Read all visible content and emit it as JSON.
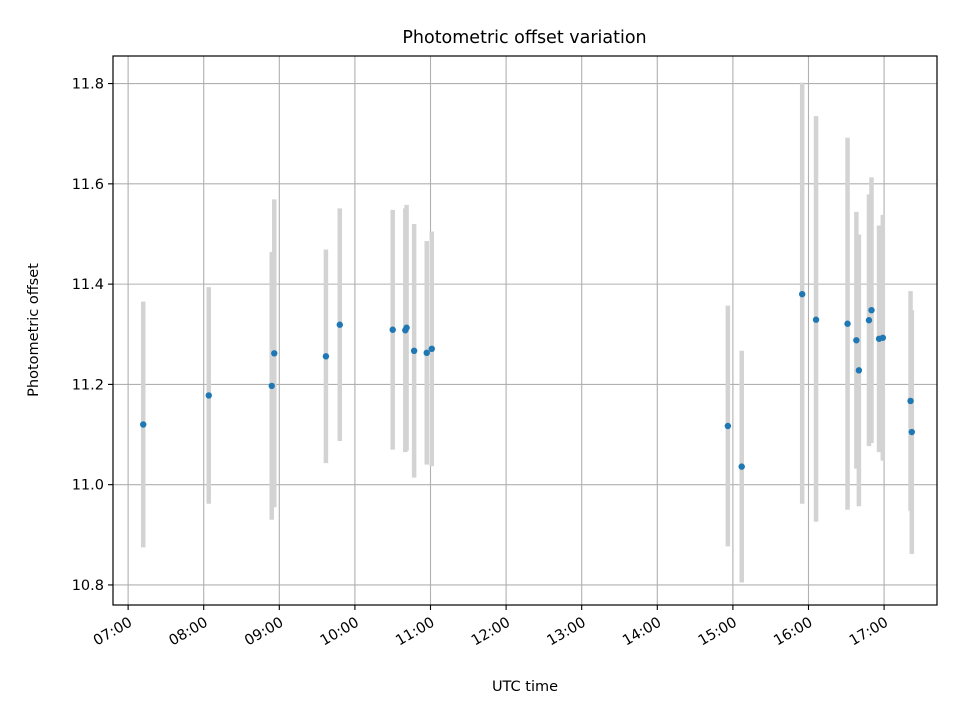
{
  "chart_data": {
    "type": "scatter",
    "title": "Photometric offset variation",
    "xlabel": "UTC time",
    "ylabel": "Photometric offset",
    "grid": true,
    "xlim": [
      "06:48",
      "17:42"
    ],
    "ylim": [
      10.76,
      11.855
    ],
    "x_ticks": [
      "07:00",
      "08:00",
      "09:00",
      "10:00",
      "11:00",
      "12:00",
      "13:00",
      "14:00",
      "15:00",
      "16:00",
      "17:00"
    ],
    "y_ticks": [
      "10.8",
      "11.0",
      "11.2",
      "11.4",
      "11.6",
      "11.8"
    ],
    "colors": {
      "points": "#1f77b4",
      "errorbars": "#d3d3d3",
      "grid": "#b0b0b0"
    },
    "series": [
      {
        "points": [
          {
            "x": "07:12",
            "y": 11.12,
            "low": 10.875,
            "high": 11.365
          },
          {
            "x": "08:04",
            "y": 11.178,
            "low": 10.962,
            "high": 11.394
          },
          {
            "x": "08:54",
            "y": 11.197,
            "low": 10.93,
            "high": 11.464
          },
          {
            "x": "08:56",
            "y": 11.262,
            "low": 10.955,
            "high": 11.569
          },
          {
            "x": "09:37",
            "y": 11.256,
            "low": 11.043,
            "high": 11.469
          },
          {
            "x": "09:48",
            "y": 11.319,
            "low": 11.087,
            "high": 11.551
          },
          {
            "x": "10:30",
            "y": 11.309,
            "low": 11.07,
            "high": 11.548
          },
          {
            "x": "10:40",
            "y": 11.308,
            "low": 11.065,
            "high": 11.551
          },
          {
            "x": "10:41",
            "y": 11.313,
            "low": 11.068,
            "high": 11.558
          },
          {
            "x": "10:47",
            "y": 11.267,
            "low": 11.014,
            "high": 11.52
          },
          {
            "x": "10:57",
            "y": 11.263,
            "low": 11.04,
            "high": 11.486
          },
          {
            "x": "11:01",
            "y": 11.271,
            "low": 11.037,
            "high": 11.505
          },
          {
            "x": "14:56",
            "y": 11.117,
            "low": 10.877,
            "high": 11.357
          },
          {
            "x": "15:07",
            "y": 11.036,
            "low": 10.805,
            "high": 11.267
          },
          {
            "x": "15:55",
            "y": 11.38,
            "low": 10.962,
            "high": 11.802
          },
          {
            "x": "16:06",
            "y": 11.329,
            "low": 10.926,
            "high": 11.735
          },
          {
            "x": "16:31",
            "y": 11.321,
            "low": 10.95,
            "high": 11.692
          },
          {
            "x": "16:38",
            "y": 11.288,
            "low": 11.032,
            "high": 11.544
          },
          {
            "x": "16:40",
            "y": 11.228,
            "low": 10.957,
            "high": 11.499
          },
          {
            "x": "16:48",
            "y": 11.328,
            "low": 11.077,
            "high": 11.579
          },
          {
            "x": "16:50",
            "y": 11.348,
            "low": 11.083,
            "high": 11.613
          },
          {
            "x": "16:56",
            "y": 11.291,
            "low": 11.065,
            "high": 11.517
          },
          {
            "x": "16:59",
            "y": 11.293,
            "low": 11.048,
            "high": 11.538
          },
          {
            "x": "17:21",
            "y": 11.167,
            "low": 10.948,
            "high": 11.386
          },
          {
            "x": "17:22",
            "y": 11.105,
            "low": 10.862,
            "high": 11.348
          }
        ]
      }
    ]
  }
}
